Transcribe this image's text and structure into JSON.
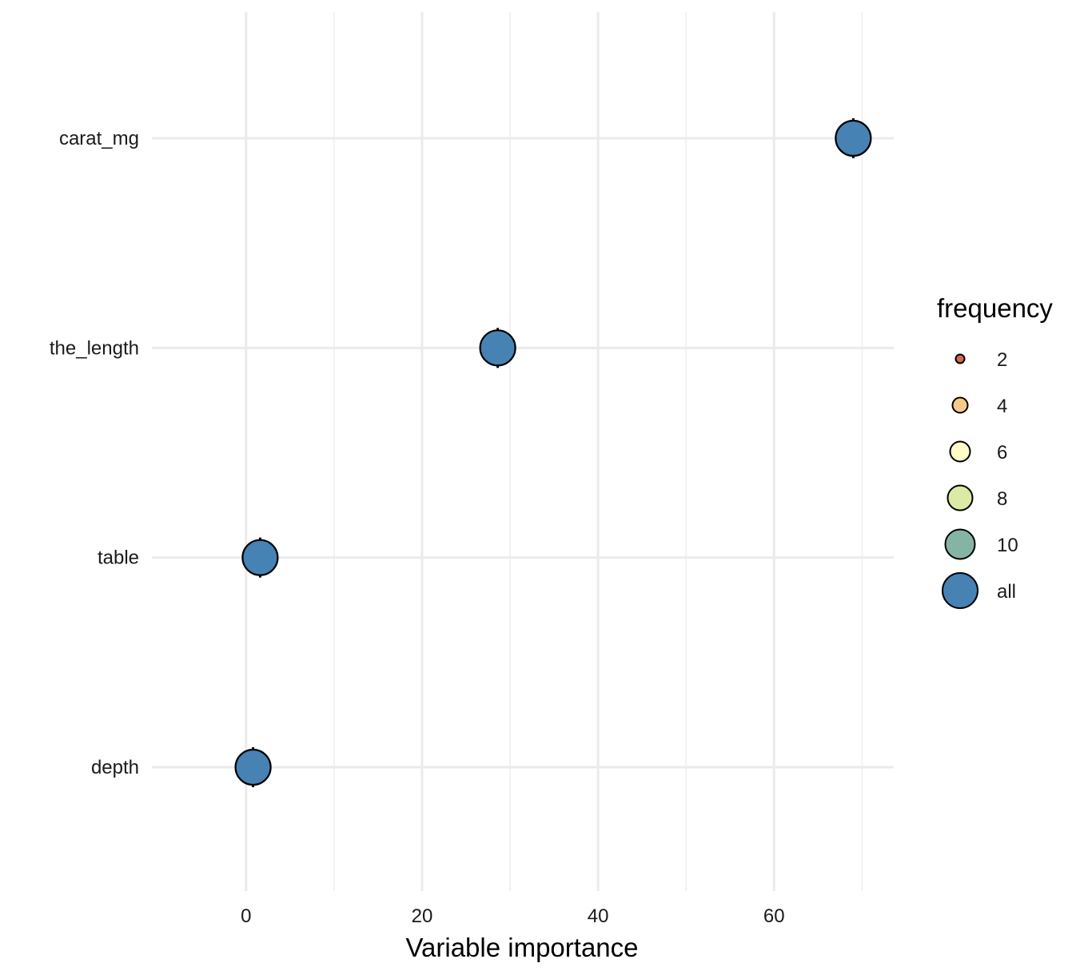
{
  "chart_data": {
    "type": "scatter",
    "title": "",
    "xlabel": "Variable importance",
    "ylabel": "",
    "xlim": [
      -10.7,
      73.6
    ],
    "x_ticks": [
      0,
      20,
      40,
      60
    ],
    "x_minor_ticks": [
      10,
      30,
      50,
      70
    ],
    "grid": true,
    "categories": [
      "carat_mg",
      "the_length",
      "table",
      "depth"
    ],
    "series": [
      {
        "name": "all",
        "color": "#4682b4",
        "points": [
          {
            "variable": "carat_mg",
            "x": 69.0,
            "x_low": 69.0,
            "x_high": 69.0
          },
          {
            "variable": "the_length",
            "x": 28.6,
            "x_low": 28.6,
            "x_high": 28.6
          },
          {
            "variable": "table",
            "x": 1.6,
            "x_low": 1.6,
            "x_high": 1.6
          },
          {
            "variable": "depth",
            "x": 0.8,
            "x_low": 0.8,
            "x_high": 0.8
          }
        ]
      }
    ],
    "legend": {
      "title": "frequency",
      "placement": "right",
      "entries": [
        {
          "label": "2",
          "color": "#d7694f"
        },
        {
          "label": "4",
          "color": "#f8c98a"
        },
        {
          "label": "6",
          "color": "#fefcc9"
        },
        {
          "label": "8",
          "color": "#dbeaa4"
        },
        {
          "label": "10",
          "color": "#86b4a4"
        },
        {
          "label": "all",
          "color": "#4682b4"
        }
      ]
    }
  }
}
